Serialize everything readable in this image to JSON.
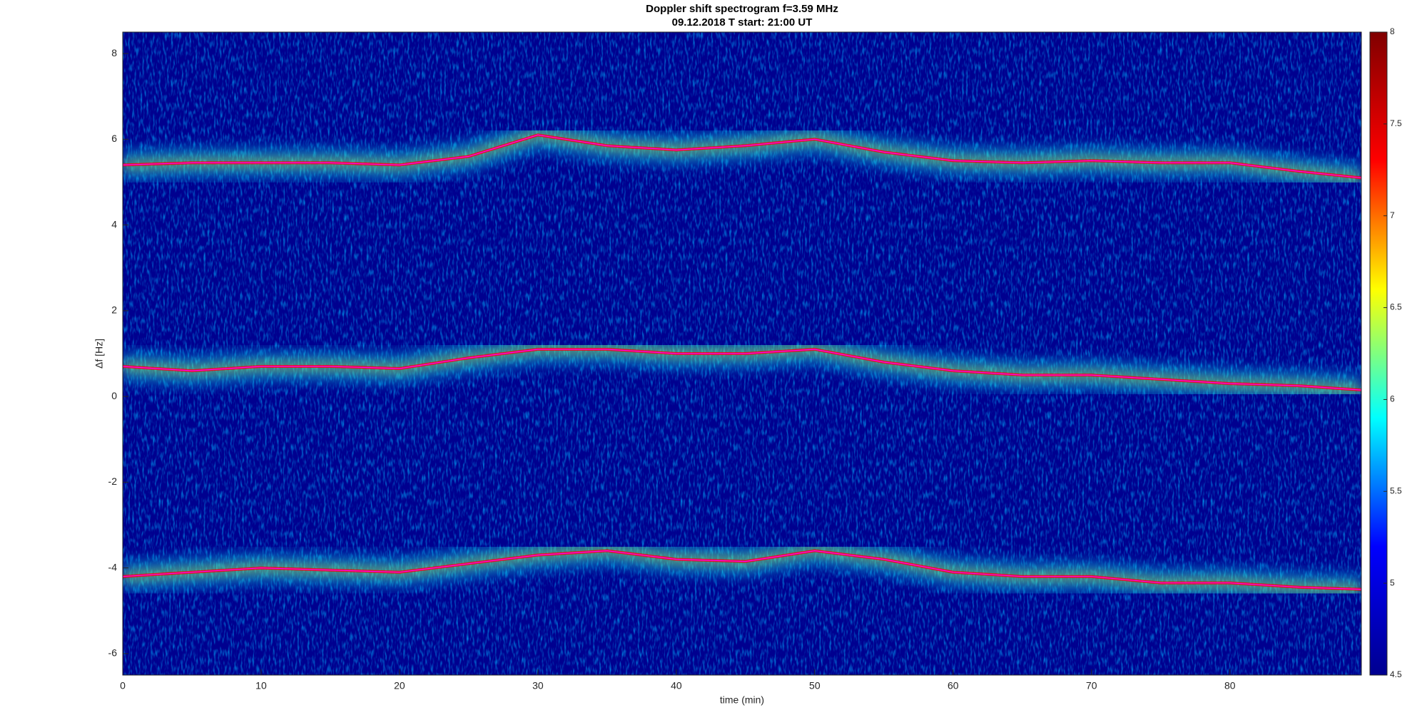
{
  "chart_data": {
    "type": "spectrogram",
    "title": "Doppler shift spectrogram f=3.59 MHz",
    "subtitle": "09.12.2018    T start: 21:00 UT",
    "x_label": "time (min)",
    "y_label": "Δf [Hz]",
    "x": [
      0,
      5,
      10,
      15,
      20,
      25,
      30,
      35,
      40,
      45,
      50,
      55,
      60,
      65,
      70,
      75,
      80,
      85,
      89.5
    ],
    "series": [
      {
        "color": "#ff00ff",
        "values": [
          5.4,
          5.45,
          5.45,
          5.45,
          5.4,
          5.6,
          6.1,
          5.85,
          5.75,
          5.85,
          6.0,
          5.7,
          5.5,
          5.45,
          5.5,
          5.45,
          5.45,
          5.25,
          5.1
        ]
      },
      {
        "color": "#ff00ff",
        "values": [
          0.7,
          0.6,
          0.7,
          0.7,
          0.65,
          0.9,
          1.1,
          1.1,
          1.0,
          1.0,
          1.1,
          0.8,
          0.6,
          0.5,
          0.5,
          0.4,
          0.3,
          0.25,
          0.15
        ]
      },
      {
        "color": "#ff00ff",
        "values": [
          -4.2,
          -4.1,
          -4.0,
          -4.05,
          -4.1,
          -3.9,
          -3.7,
          -3.6,
          -3.8,
          -3.85,
          -3.6,
          -3.8,
          -4.1,
          -4.2,
          -4.2,
          -4.35,
          -4.35,
          -4.45,
          -4.5
        ]
      }
    ],
    "xlim": [
      0,
      89.5
    ],
    "xticks": [
      0,
      10,
      20,
      30,
      40,
      50,
      60,
      70,
      80
    ],
    "ylim": [
      -6.5,
      8.5
    ],
    "yticks": [
      -6,
      -4,
      -2,
      0,
      2,
      4,
      6,
      8
    ],
    "clim": [
      4.5,
      8
    ],
    "cticks": [
      4.5,
      5,
      5.5,
      6,
      6.5,
      7,
      7.5,
      8
    ],
    "colormap": [
      "#00008f",
      "#0000ff",
      "#00ffff",
      "#ffff00",
      "#ff0000",
      "#800000"
    ]
  }
}
